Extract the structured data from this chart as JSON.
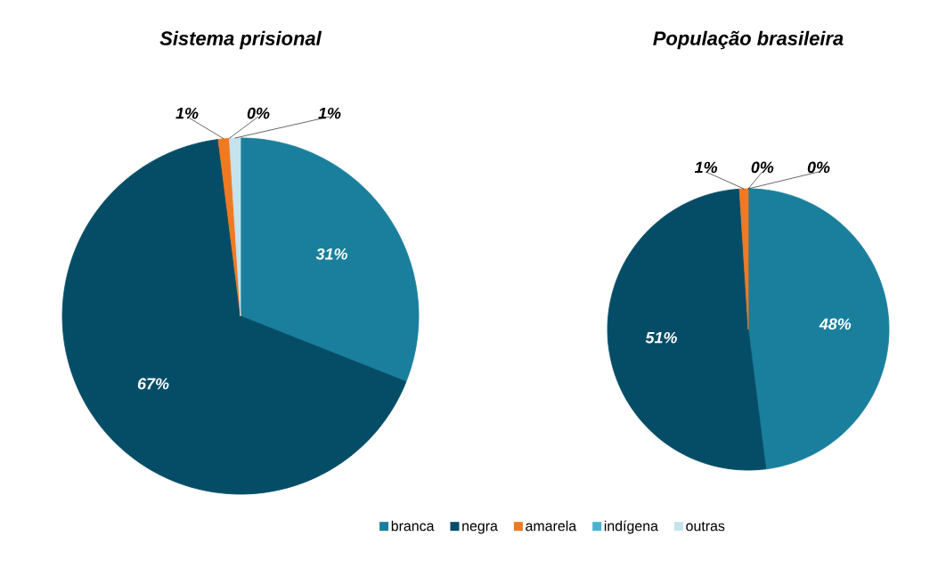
{
  "chart_data": [
    {
      "type": "pie",
      "title": "Sistema prisional",
      "categories": [
        "branca",
        "negra",
        "amarela",
        "indígena",
        "outras"
      ],
      "values": [
        31,
        67,
        1,
        0,
        1
      ],
      "value_labels": [
        "31%",
        "67%",
        "1%",
        "0%",
        "1%"
      ],
      "colors": [
        "#1a7f9c",
        "#054d66",
        "#f07a22",
        "#4bb3cf",
        "#c5e3ed"
      ],
      "legend": "bottom"
    },
    {
      "type": "pie",
      "title": "População brasileira",
      "categories": [
        null,
        null,
        null,
        null,
        null
      ],
      "values": [
        48,
        51,
        1,
        0,
        0
      ],
      "value_labels": [
        "48%",
        "51%",
        "1%",
        "0%",
        "0%"
      ],
      "colors": [
        "#1a7f9c",
        "#054d66",
        "#f07a22",
        "#4bb3cf",
        "#c5e3ed"
      ]
    }
  ]
}
